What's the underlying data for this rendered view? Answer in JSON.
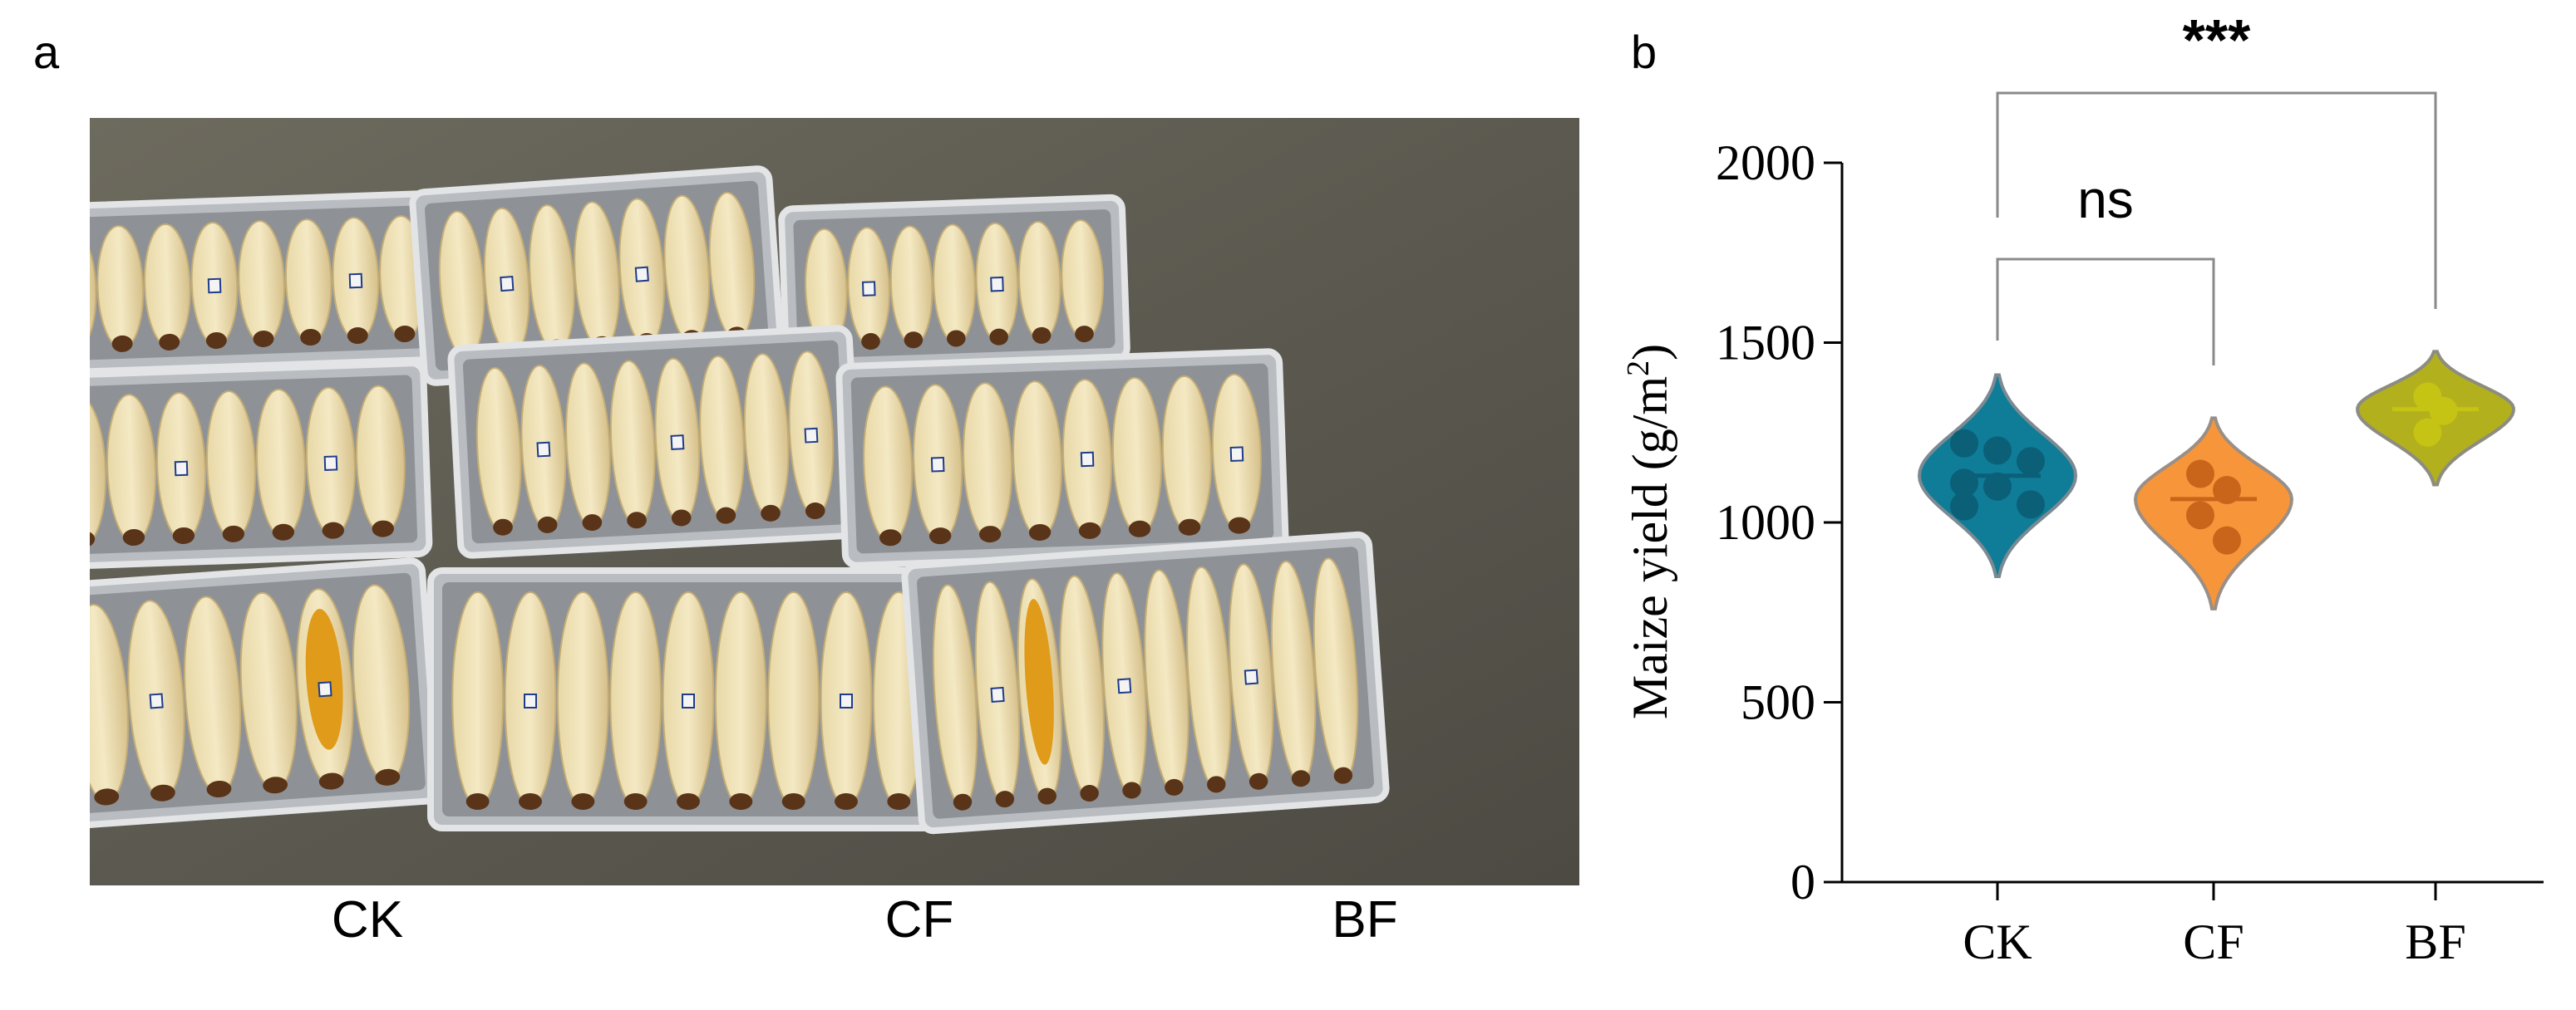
{
  "figure": {
    "panel_a_label": "a",
    "panel_b_label": "b",
    "photo_captions": [
      "CK",
      "CF",
      "BF"
    ]
  },
  "chart_data": {
    "type": "violin",
    "title": "",
    "xlabel": "",
    "ylabel": "Maize yield (g/m",
    "ylabel_superscript": "2",
    "ylabel_suffix": ")",
    "ylim": [
      0,
      2000
    ],
    "yticks": [
      0,
      500,
      1000,
      1500,
      2000
    ],
    "ytick_labels": [
      "0",
      "500",
      "1000",
      "1500",
      "2000"
    ],
    "categories": [
      "CK",
      "CF",
      "BF"
    ],
    "series": [
      {
        "category": "CK",
        "color": "#0f7c98",
        "edge": "#7b8a92",
        "dot": "#0b5f77",
        "median": 1130,
        "range": [
          850,
          1410
        ],
        "points": [
          1220,
          1200,
          1170,
          1110,
          1100,
          1050,
          1045
        ]
      },
      {
        "category": "CF",
        "color": "#f7953a",
        "edge": "#9a8f86",
        "dot": "#c9651a",
        "median": 1065,
        "range": [
          760,
          1290
        ],
        "points": [
          1135,
          1090,
          1020,
          950
        ]
      },
      {
        "category": "BF",
        "color": "#b3b01e",
        "edge": "#8c8c80",
        "dot": "#c5c313",
        "median": 1315,
        "range": [
          1105,
          1475
        ],
        "points": [
          1350,
          1310,
          1250
        ]
      }
    ],
    "significance": [
      {
        "pair": [
          "CK",
          "CF"
        ],
        "label": "ns"
      },
      {
        "pair": [
          "CK",
          "BF"
        ],
        "label": "***"
      }
    ],
    "grid": false
  }
}
